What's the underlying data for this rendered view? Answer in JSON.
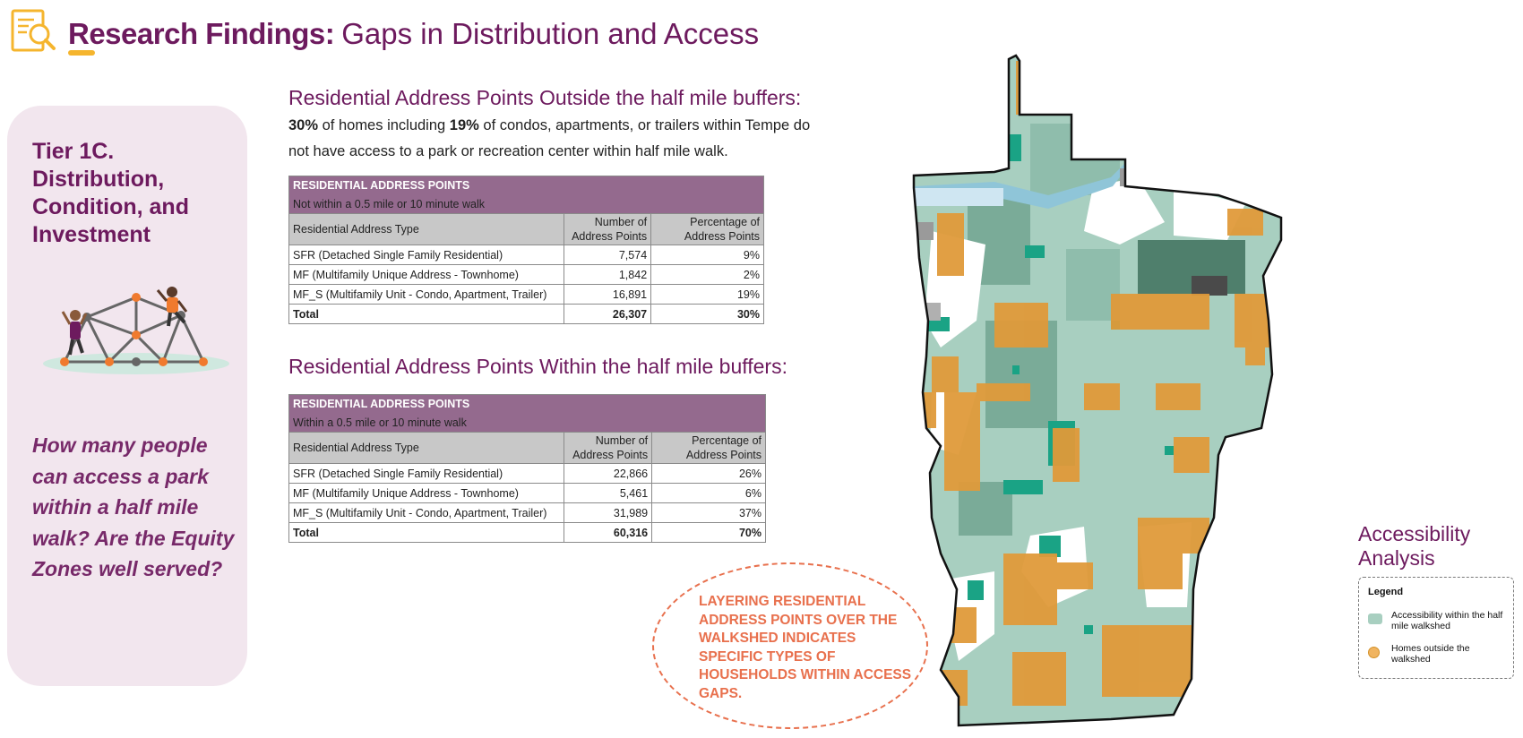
{
  "header": {
    "title_bold": "Research Findings:",
    "title_light": "Gaps in Distribution and Access",
    "icon": "research-magnifier-icon"
  },
  "tier_card": {
    "title": "Tier 1C. Distribution, Condition, and Investment",
    "question": "How many people can access a park within a half mile walk? Are the Equity Zones well served?",
    "illustration": "kids-climbing-dome-illustration"
  },
  "outside": {
    "section_title": "Residential Address Points Outside the half mile buffers:",
    "desc_pct1": "30%",
    "desc_mid": " of homes including ",
    "desc_pct2": "19%",
    "desc_rest": " of condos, apartments, or trailers within Tempe do not have access to a park or recreation center within half mile walk.",
    "table": {
      "header1": "RESIDENTIAL ADDRESS POINTS",
      "header2": "Not within a 0.5 mile or 10 minute walk",
      "col_type": "Residential Address Type",
      "col_num": "Number of Address Points",
      "col_pct": "Percentage of Address Points",
      "rows": [
        {
          "type": "SFR (Detached Single Family Residential)",
          "num": "7,574",
          "pct": "9%"
        },
        {
          "type": "MF (Multifamily Unique Address - Townhome)",
          "num": "1,842",
          "pct": "2%"
        },
        {
          "type": "MF_S (Multifamily Unit - Condo, Apartment, Trailer)",
          "num": "16,891",
          "pct": "19%"
        }
      ],
      "total": {
        "type": "Total",
        "num": "26,307",
        "pct": "30%"
      }
    }
  },
  "within": {
    "section_title": "Residential Address Points Within the half mile buffers:",
    "table": {
      "header1": "RESIDENTIAL ADDRESS POINTS",
      "header2": "Within a 0.5 mile or 10 minute walk",
      "col_type": "Residential Address Type",
      "col_num": "Number of Address Points",
      "col_pct": "Percentage of Address Points",
      "rows": [
        {
          "type": "SFR (Detached Single Family Residential)",
          "num": "22,866",
          "pct": "26%"
        },
        {
          "type": "MF (Multifamily Unique Address - Townhome)",
          "num": "5,461",
          "pct": "6%"
        },
        {
          "type": "MF_S (Multifamily Unit - Condo, Apartment, Trailer)",
          "num": "31,989",
          "pct": "37%"
        }
      ],
      "total": {
        "type": "Total",
        "num": "60,316",
        "pct": "70%"
      }
    }
  },
  "callout": {
    "text": "Layering residential address points over the walkshed indicates specific types of households within access gaps."
  },
  "analysis": {
    "title": "Accessibility Analysis",
    "legend_title": "Legend",
    "legend_items": [
      {
        "label": "Accessibility within the half mile walkshed",
        "color": "#a8cfc0"
      },
      {
        "label": "Homes outside the walkshed",
        "color": "#f0b460"
      }
    ]
  },
  "colors": {
    "brand": "#6d1a5e",
    "accent": "#f5b52e",
    "callout": "#e8704d",
    "table_header": "#946a8e",
    "walkshed": "#a8cfc0",
    "homes": "#f0b460"
  }
}
